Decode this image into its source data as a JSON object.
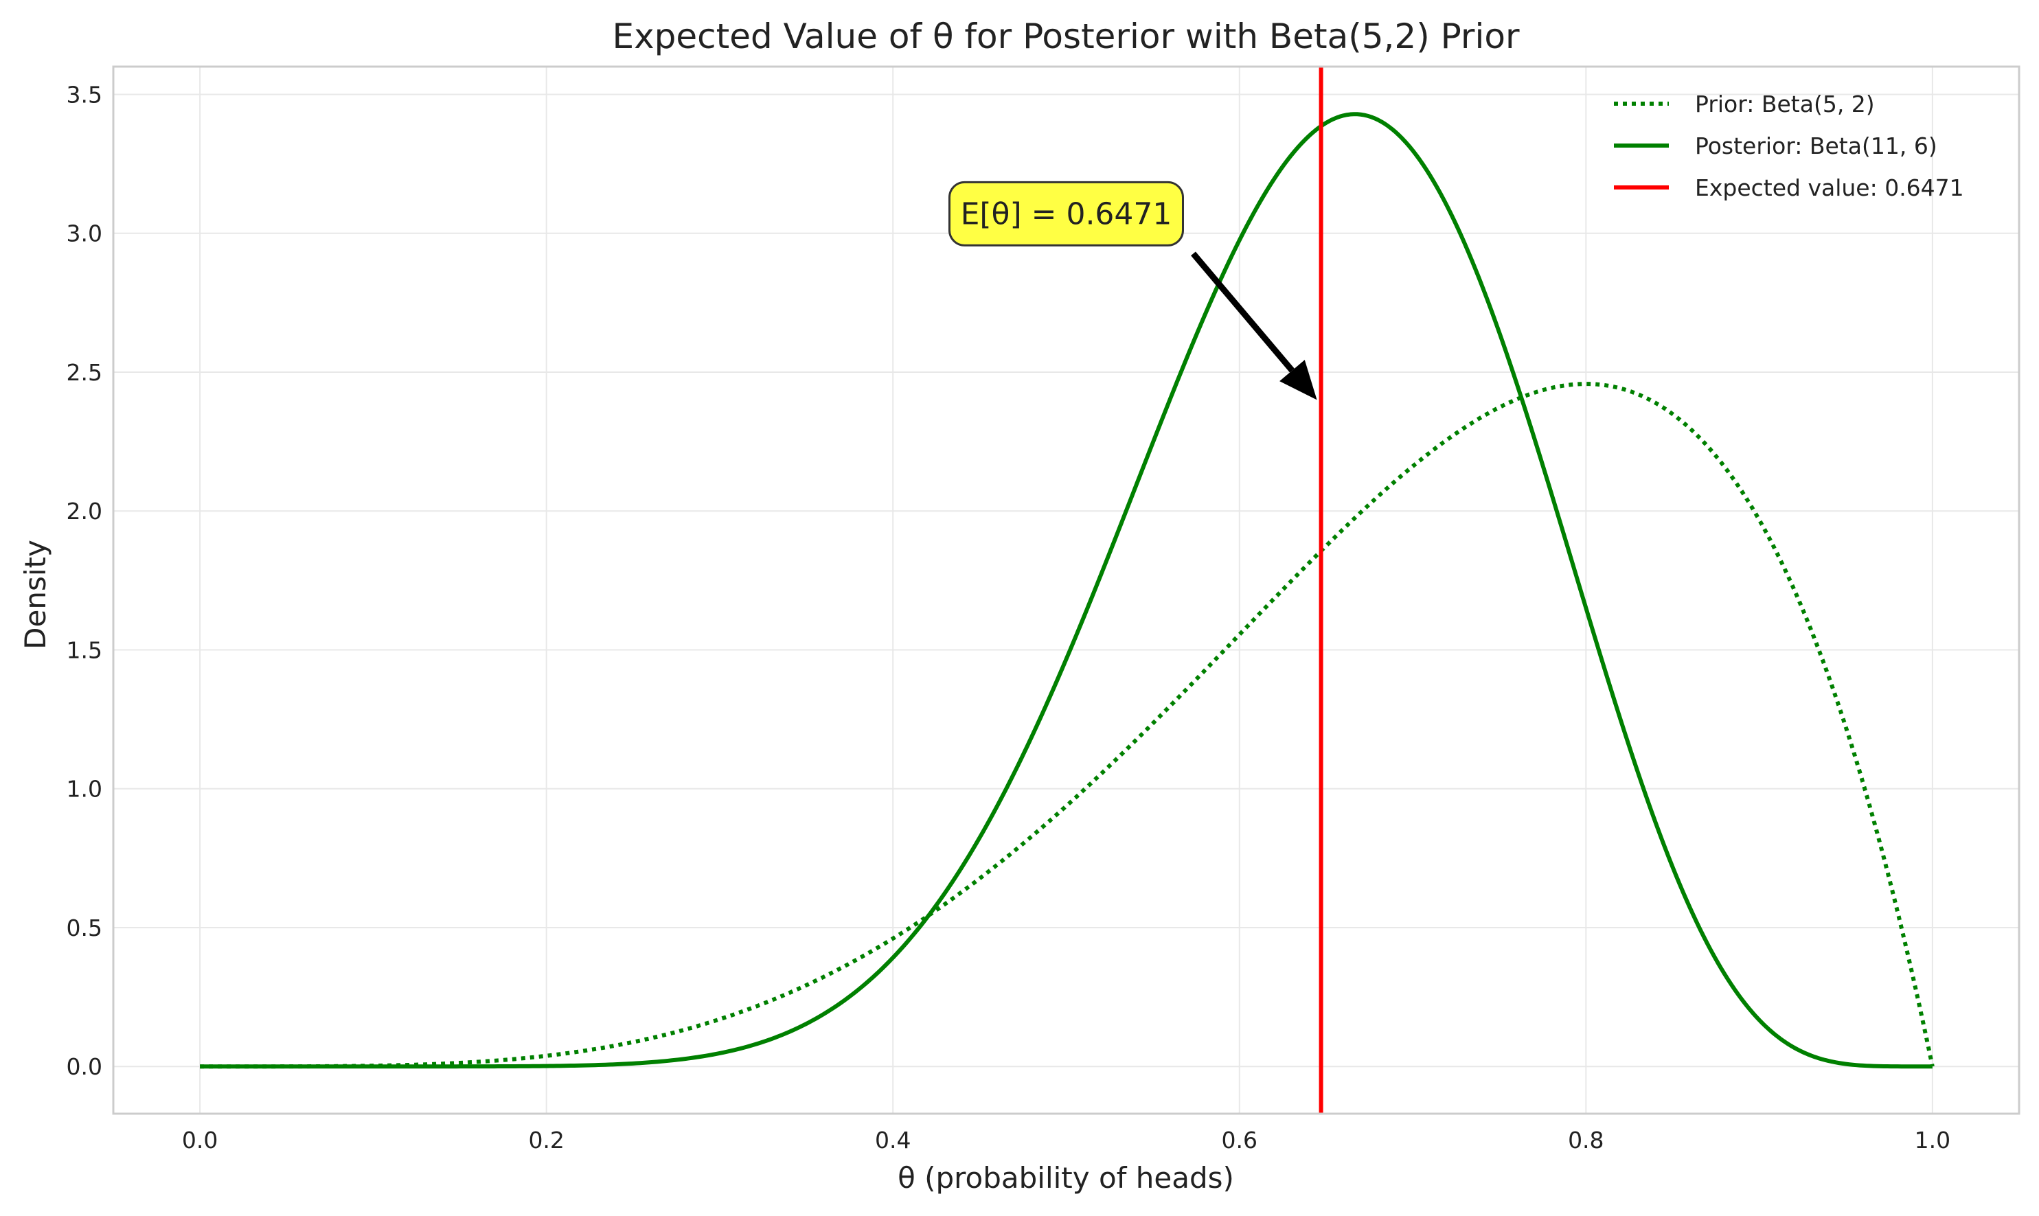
{
  "chart_data": {
    "type": "line",
    "title": "Expected Value of θ for Posterior with Beta(5,2) Prior",
    "xlabel": "θ (probability of heads)",
    "ylabel": "Density",
    "xlim": [
      -0.05,
      1.05
    ],
    "ylim": [
      -0.17,
      3.6
    ],
    "x_ticks": [
      0.0,
      0.2,
      0.4,
      0.6,
      0.8,
      1.0
    ],
    "x_tick_labels": [
      "0.0",
      "0.2",
      "0.4",
      "0.6",
      "0.8",
      "1.0"
    ],
    "y_ticks": [
      0.0,
      0.5,
      1.0,
      1.5,
      2.0,
      2.5,
      3.0,
      3.5
    ],
    "y_tick_labels": [
      "0.0",
      "0.5",
      "1.0",
      "1.5",
      "2.0",
      "2.5",
      "3.0",
      "3.5"
    ],
    "grid": true,
    "legend_position": "top-right",
    "series": [
      {
        "name": "Prior: Beta(5, 2)",
        "distribution": {
          "family": "beta",
          "alpha": 5,
          "beta": 2
        },
        "x_range": [
          0,
          1
        ],
        "color": "#008000",
        "style": "dotted"
      },
      {
        "name": "Posterior: Beta(11, 6)",
        "distribution": {
          "family": "beta",
          "alpha": 11,
          "beta": 6
        },
        "x_range": [
          0,
          1
        ],
        "color": "#008000",
        "style": "solid"
      },
      {
        "name": "Expected value: 0.6471",
        "type": "vline",
        "x": 0.6471,
        "color": "#ff0000",
        "style": "solid"
      }
    ],
    "annotations": [
      {
        "text": "E[θ] = 0.6471",
        "text_at": [
          0.5,
          3.07
        ],
        "arrow_to": [
          0.6471,
          2.4
        ],
        "box_color": "#ffff44"
      }
    ]
  }
}
